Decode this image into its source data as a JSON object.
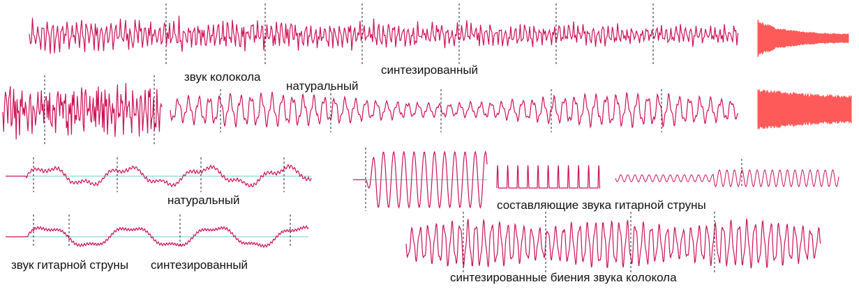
{
  "labels": {
    "bell_sound": "звук колокола",
    "bell_natural": "натуральный",
    "bell_synthesized": "синтезированный",
    "guitar_natural": "натуральный",
    "guitar_components": "составляющие звука гитарной струны",
    "guitar_sound": "звук гитарной струны",
    "guitar_synthesized": "синтезированный",
    "bell_beats": "синтезированные биения звука колокола"
  },
  "colors": {
    "waveform": "#cc1155",
    "envelope": "#ff5a5a",
    "baseline": "#66cccc",
    "marker": "#222222"
  }
}
